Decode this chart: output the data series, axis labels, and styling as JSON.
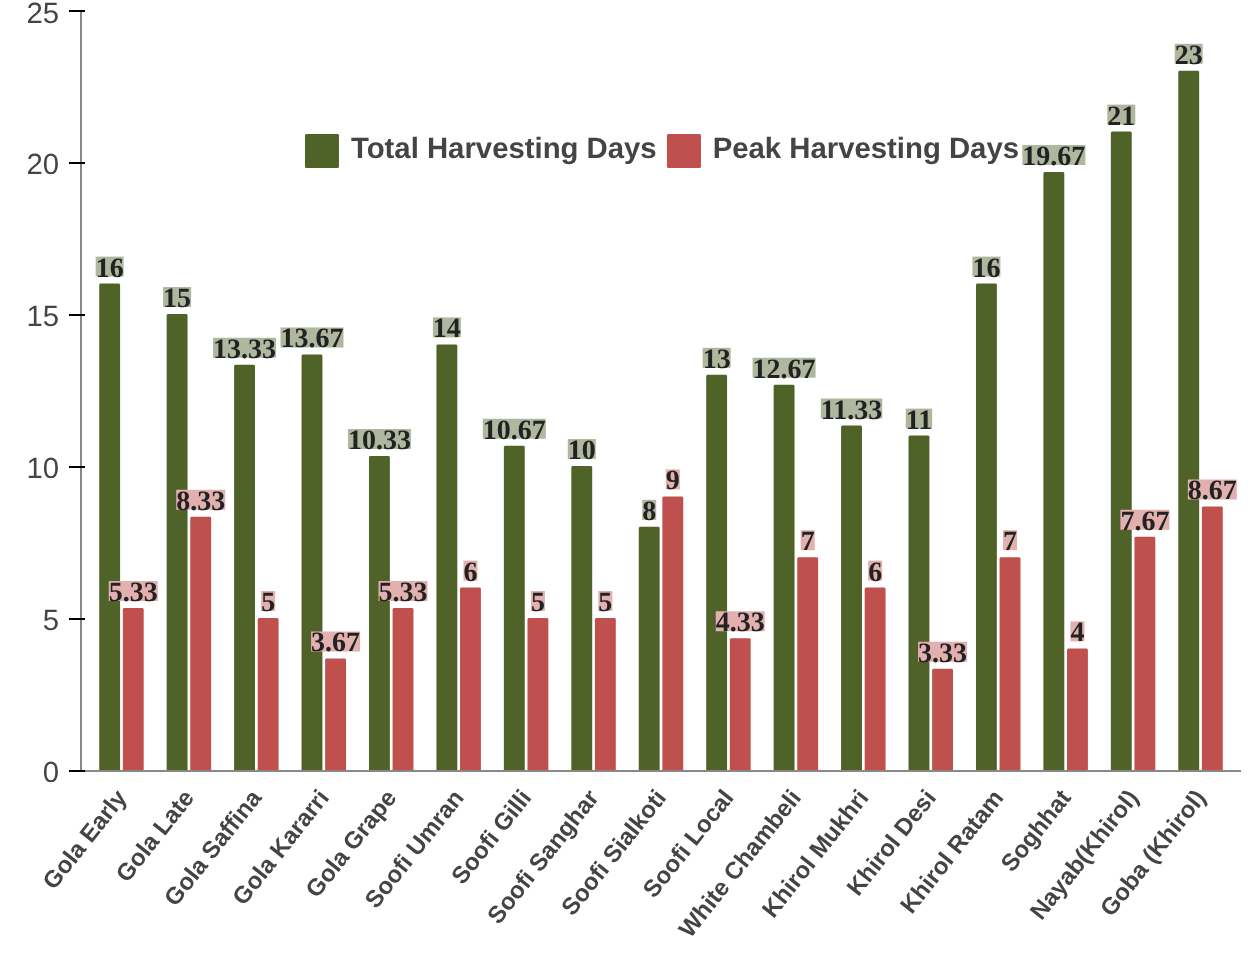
{
  "chart_data": {
    "type": "bar",
    "categories": [
      "Gola Early",
      "Gola Late",
      "Gola Saffina",
      "Gola Kararri",
      "Gola Grape",
      "Soofi Umran",
      "Soofi Gilli",
      "Soofi Sanghar",
      "Soofi Sialkoti",
      "Soofi Local",
      "White Chambeli",
      "Khirol Mukhri",
      "Khirol Desi",
      "Khirol Ratam",
      "Soghhat",
      "Nayab(Khirol)",
      "Goba (Khirol)"
    ],
    "series": [
      {
        "name": "Total Harvesting Days",
        "color": "#4f6228",
        "values": [
          16,
          15,
          13.33,
          13.67,
          10.33,
          14,
          10.67,
          10,
          8,
          13,
          12.67,
          11.33,
          11,
          16,
          19.67,
          21,
          23
        ]
      },
      {
        "name": "Peak Harvesting Days",
        "color": "#c0504d",
        "values": [
          5.33,
          8.33,
          5,
          3.67,
          5.33,
          6,
          5,
          5,
          9,
          4.33,
          7,
          6,
          3.33,
          7,
          4,
          7.67,
          8.67
        ]
      }
    ],
    "ylim": [
      0,
      25
    ],
    "yticks": [
      0,
      5,
      10,
      15,
      20,
      25
    ],
    "grid": false,
    "legend": "top",
    "data_labels": true
  }
}
